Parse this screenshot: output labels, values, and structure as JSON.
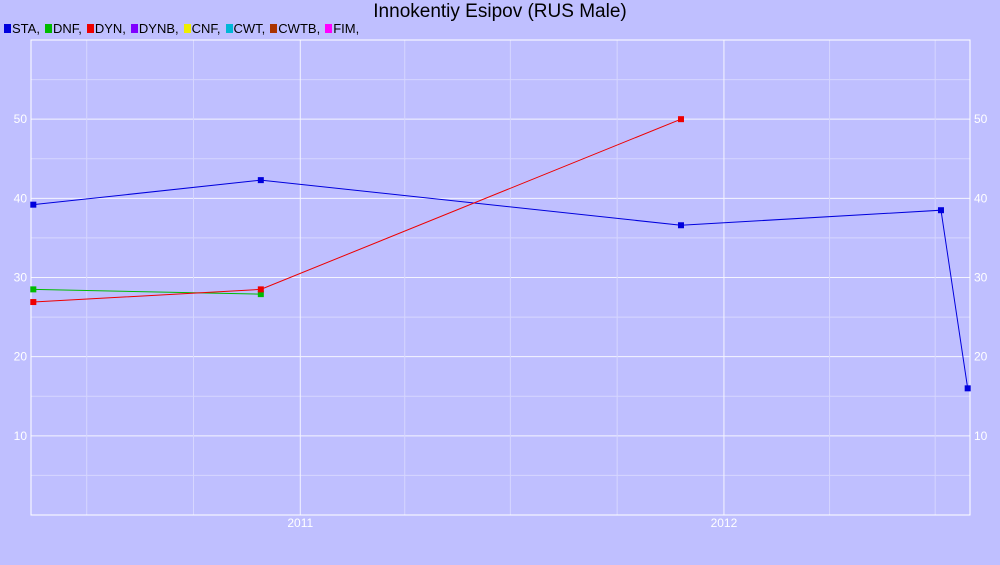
{
  "chart_data": {
    "type": "line",
    "title": "Innokentiy Esipov (RUS Male)",
    "xlabel": "",
    "ylabel": "",
    "x_ticks": [
      "2011",
      "2012"
    ],
    "x_range": [
      "2010-05-14",
      "2012-07-31"
    ],
    "ylim": [
      0,
      60
    ],
    "y_ticks": [
      10,
      20,
      30,
      40,
      50
    ],
    "grid": true,
    "legend_position": "top-left",
    "legend": [
      {
        "name": "STA",
        "label": "STA,",
        "color": "#0000dd"
      },
      {
        "name": "DNF",
        "label": "DNF,",
        "color": "#00bb00"
      },
      {
        "name": "DYN",
        "label": "DYN,",
        "color": "#ee0000"
      },
      {
        "name": "DYNB",
        "label": "DYNB,",
        "color": "#7f00ff"
      },
      {
        "name": "CNF",
        "label": "CNF,",
        "color": "#eeee00"
      },
      {
        "name": "CWT",
        "label": "CWT,",
        "color": "#00b7d7"
      },
      {
        "name": "CWTB",
        "label": "CWTB,",
        "color": "#aa3300"
      },
      {
        "name": "FIM",
        "label": "FIM,",
        "color": "#ff00ff"
      }
    ],
    "series": [
      {
        "name": "STA",
        "color": "#0000dd",
        "points": [
          {
            "x": "2010-05-16",
            "y": 39.2
          },
          {
            "x": "2010-11-28",
            "y": 42.3
          },
          {
            "x": "2011-11-25",
            "y": 36.6
          },
          {
            "x": "2012-07-06",
            "y": 38.5
          },
          {
            "x": "2012-07-29",
            "y": 16.0
          }
        ]
      },
      {
        "name": "DNF",
        "color": "#00bb00",
        "points": [
          {
            "x": "2010-05-16",
            "y": 28.5
          },
          {
            "x": "2010-11-28",
            "y": 27.9
          }
        ]
      },
      {
        "name": "DYN",
        "color": "#ee0000",
        "points": [
          {
            "x": "2010-05-16",
            "y": 26.9
          },
          {
            "x": "2010-11-28",
            "y": 28.5
          },
          {
            "x": "2011-11-25",
            "y": 50.0
          }
        ]
      }
    ]
  }
}
